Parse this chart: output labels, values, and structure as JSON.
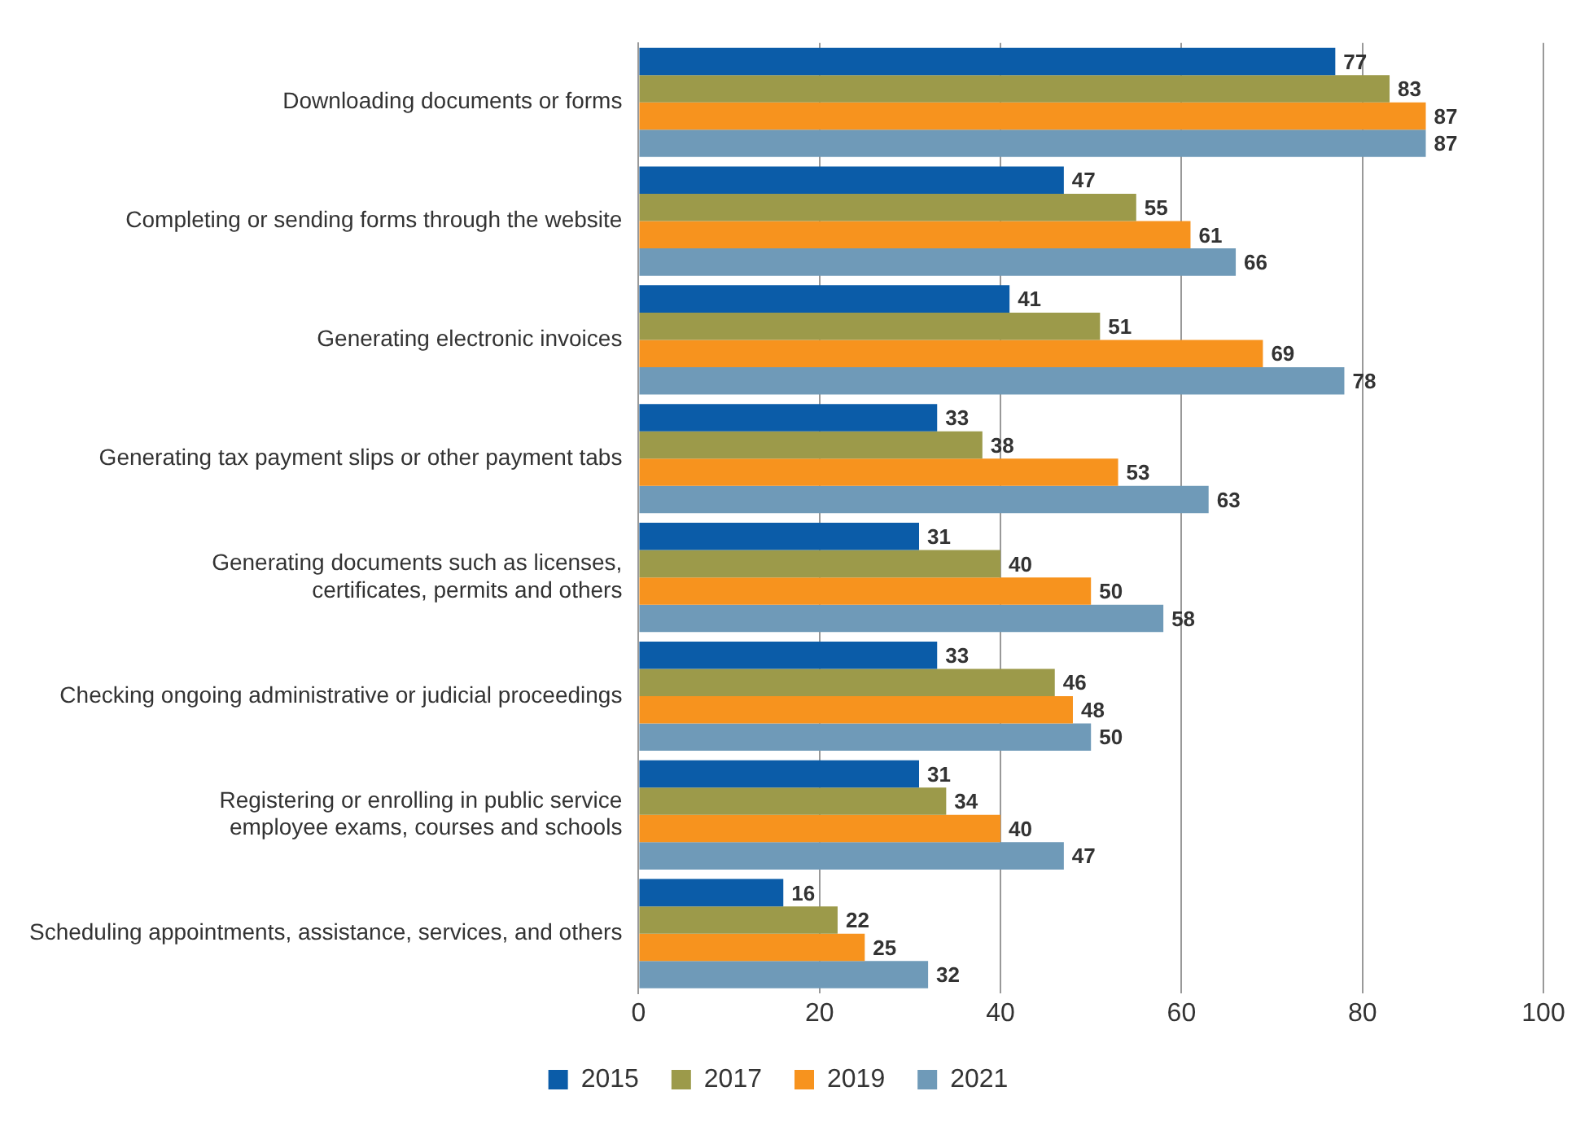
{
  "chart_data": {
    "type": "bar",
    "orientation": "horizontal",
    "categories": [
      "Downloading documents or forms",
      "Completing or sending forms through the website",
      "Generating electronic invoices",
      "Generating tax payment slips or other payment tabs",
      "Generating documents such as licenses, certificates, permits and others",
      "Checking ongoing administrative or judicial proceedings",
      "Registering or enrolling in public service employee exams, courses and schools",
      "Scheduling appointments, assistance, services, and others"
    ],
    "series": [
      {
        "name": "2015",
        "color": "#0b5ca8",
        "values": [
          77,
          47,
          41,
          33,
          31,
          33,
          31,
          16
        ]
      },
      {
        "name": "2017",
        "color": "#9c9a4a",
        "values": [
          83,
          55,
          51,
          38,
          40,
          46,
          34,
          22
        ]
      },
      {
        "name": "2019",
        "color": "#f7931e",
        "values": [
          87,
          61,
          69,
          53,
          50,
          48,
          40,
          25
        ]
      },
      {
        "name": "2021",
        "color": "#6f9ab8",
        "values": [
          87,
          66,
          78,
          63,
          58,
          50,
          47,
          32
        ]
      }
    ],
    "xlim": [
      0,
      100
    ],
    "xticks": [
      0,
      20,
      40,
      60,
      80,
      100
    ],
    "grid": "x",
    "legend": "bottom",
    "data_labels": true
  }
}
